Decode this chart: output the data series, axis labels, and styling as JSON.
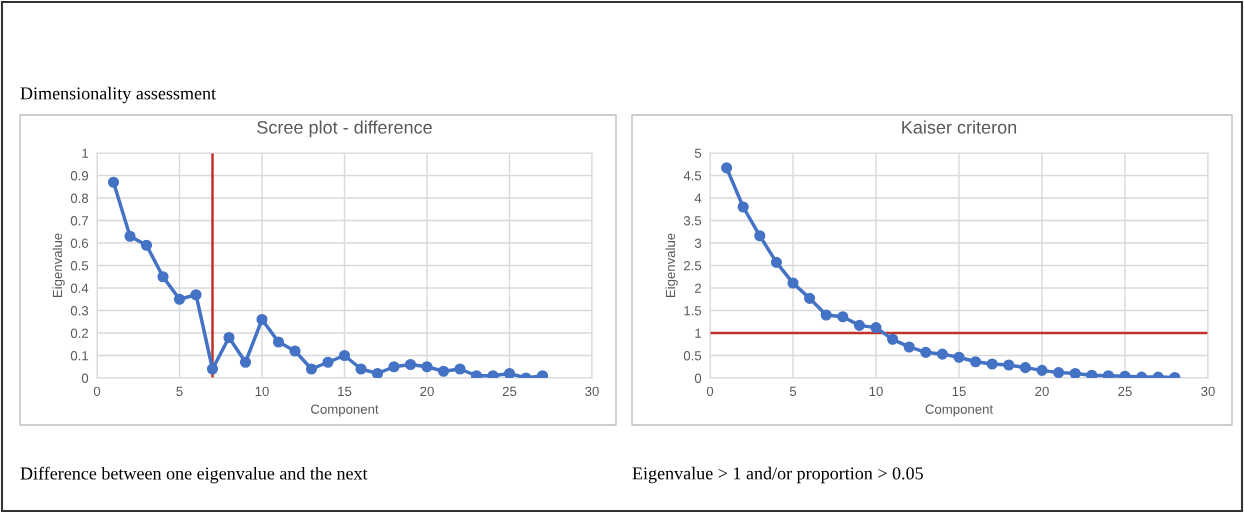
{
  "chart_data": [
    {
      "type": "line",
      "title": "Scree plot - difference",
      "xlabel": "Component",
      "ylabel": "Eigenvalue",
      "annotations": [
        "Dimensionality assessment",
        "Difference between one eigenvalue and the next"
      ],
      "x": [
        1,
        2,
        3,
        4,
        5,
        6,
        7,
        8,
        9,
        10,
        11,
        12,
        13,
        14,
        15,
        16,
        17,
        18,
        19,
        20,
        21,
        22,
        23,
        24,
        25,
        26,
        27
      ],
      "series": [
        {
          "color": "#4472c4",
          "values": [
            0.87,
            0.63,
            0.59,
            0.45,
            0.35,
            0.37,
            0.04,
            0.18,
            0.07,
            0.26,
            0.16,
            0.12,
            0.04,
            0.07,
            0.1,
            0.04,
            0.02,
            0.05,
            0.06,
            0.05,
            0.03,
            0.04,
            0.01,
            0.01,
            0.02,
            0.0,
            0.01
          ]
        }
      ],
      "xlim": [
        0,
        30
      ],
      "xticks": [
        0,
        5,
        10,
        15,
        20,
        25,
        30
      ],
      "ylim": [
        0,
        1
      ],
      "yticks": [
        0,
        0.1,
        0.2,
        0.3,
        0.4,
        0.5,
        0.6,
        0.7,
        0.8,
        0.9,
        1
      ],
      "ref_lines": [
        {
          "axis": "x",
          "value": 7,
          "color": "#c0312b"
        }
      ],
      "grid": true,
      "marker": "circle",
      "line_style": "solid",
      "legend": false
    },
    {
      "type": "line",
      "title": "Kaiser criteron",
      "xlabel": "Component",
      "ylabel": "Eigenvalue",
      "annotations": [
        "Eigenvalue > 1 and/or proportion > 0.05"
      ],
      "x": [
        1,
        2,
        3,
        4,
        5,
        6,
        7,
        8,
        9,
        10,
        11,
        12,
        13,
        14,
        15,
        16,
        17,
        18,
        19,
        20,
        21,
        22,
        23,
        24,
        25,
        26,
        27,
        28
      ],
      "series": [
        {
          "color": "#4472c4",
          "values": [
            4.67,
            3.8,
            3.16,
            2.57,
            2.11,
            1.77,
            1.4,
            1.36,
            1.17,
            1.12,
            0.86,
            0.69,
            0.57,
            0.53,
            0.46,
            0.36,
            0.31,
            0.29,
            0.23,
            0.17,
            0.12,
            0.1,
            0.06,
            0.05,
            0.04,
            0.02,
            0.02,
            0.01
          ]
        }
      ],
      "xlim": [
        0,
        30
      ],
      "xticks": [
        0,
        5,
        10,
        15,
        20,
        25,
        30
      ],
      "ylim": [
        0,
        5
      ],
      "yticks": [
        0,
        0.5,
        1,
        1.5,
        2,
        2.5,
        3,
        3.5,
        4,
        4.5,
        5
      ],
      "ref_lines": [
        {
          "axis": "y",
          "value": 1,
          "color": "#c0312b"
        }
      ],
      "grid": true,
      "marker": "circle",
      "line_style": "solid",
      "legend": false
    }
  ]
}
